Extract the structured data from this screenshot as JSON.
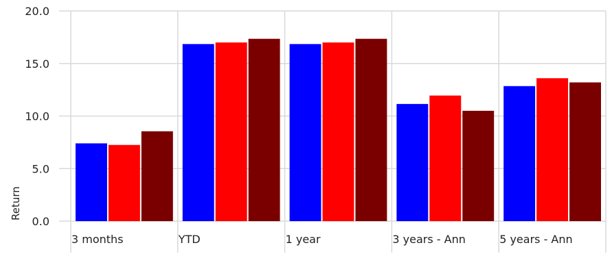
{
  "chart_data": {
    "type": "bar",
    "categories": [
      "3 months",
      "YTD",
      "1 year",
      "3 years - Ann",
      "5 years - Ann"
    ],
    "series": [
      {
        "color": "#0000ff",
        "values": [
          7.4,
          16.85,
          16.85,
          11.15,
          12.85
        ]
      },
      {
        "color": "#ff0000",
        "values": [
          7.25,
          17.0,
          17.0,
          11.95,
          13.6
        ]
      },
      {
        "color": "#7a0000",
        "values": [
          8.55,
          17.35,
          17.35,
          10.5,
          13.2
        ]
      }
    ],
    "title": "",
    "xlabel": "",
    "ylabel": "Return",
    "ylim": [
      0,
      20
    ],
    "yticks": [
      "0.0",
      "5.0",
      "10.0",
      "15.0",
      "20.0"
    ],
    "grid": true,
    "legend": "none"
  }
}
